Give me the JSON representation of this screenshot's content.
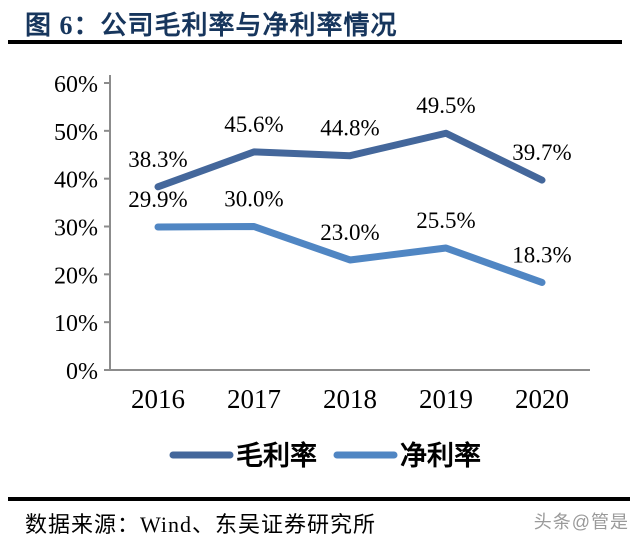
{
  "header": {
    "title": "图 6：公司毛利率与净利率情况"
  },
  "chart_data": {
    "type": "line",
    "title": "公司毛利率与净利率情况",
    "categories": [
      "2016",
      "2017",
      "2018",
      "2019",
      "2020"
    ],
    "series": [
      {
        "name": "毛利率",
        "values": [
          38.3,
          45.6,
          44.8,
          49.5,
          39.7
        ],
        "labels": [
          "38.3%",
          "45.6%",
          "44.8%",
          "49.5%",
          "39.7%"
        ],
        "color": "#44679B"
      },
      {
        "name": "净利率",
        "values": [
          29.9,
          30.0,
          23.0,
          25.5,
          18.3
        ],
        "labels": [
          "29.9%",
          "30.0%",
          "23.0%",
          "25.5%",
          "18.3%"
        ],
        "color": "#5086C3"
      }
    ],
    "xlabel": "",
    "ylabel": "",
    "ylim": [
      0,
      60
    ],
    "yticks": [
      0,
      10,
      20,
      30,
      40,
      50,
      60
    ],
    "ytick_labels": [
      "0%",
      "10%",
      "20%",
      "30%",
      "40%",
      "50%",
      "60%"
    ],
    "grid": false,
    "legend_position": "bottom",
    "axis_color": "#8c8c8c",
    "label_color": "#000000"
  },
  "footer": {
    "source": "数据来源：Wind、东吴证券研究所",
    "watermark": "头条@管是"
  }
}
